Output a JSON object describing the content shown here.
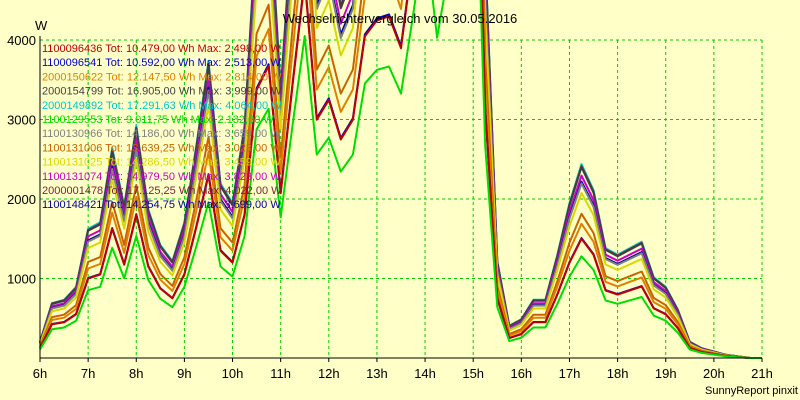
{
  "chart_data": {
    "type": "line",
    "title": "Wechselrichtervergleich vom 30.05.2016",
    "ylabel": "W",
    "xlabel": "",
    "footer": "SunnyReport pinxit",
    "ylim": [
      0,
      4000
    ],
    "xlim": [
      6,
      21
    ],
    "y_ticks": [
      {
        "v": 1000,
        "label": "1000"
      },
      {
        "v": 2000,
        "label": "2000"
      },
      {
        "v": 3000,
        "label": "3000"
      },
      {
        "v": 4000,
        "label": "4000"
      }
    ],
    "x_ticks": [
      {
        "v": 6,
        "label": "6h"
      },
      {
        "v": 7,
        "label": "7h"
      },
      {
        "v": 8,
        "label": "8h"
      },
      {
        "v": 9,
        "label": "9h"
      },
      {
        "v": 10,
        "label": "10h"
      },
      {
        "v": 11,
        "label": "11h"
      },
      {
        "v": 12,
        "label": "12h"
      },
      {
        "v": 13,
        "label": "13h"
      },
      {
        "v": 14,
        "label": "14h"
      },
      {
        "v": 15,
        "label": "15h"
      },
      {
        "v": 16,
        "label": "16h"
      },
      {
        "v": 17,
        "label": "17h"
      },
      {
        "v": 18,
        "label": "18h"
      },
      {
        "v": 19,
        "label": "19h"
      },
      {
        "v": 20,
        "label": "20h"
      },
      {
        "v": 21,
        "label": "21h"
      }
    ],
    "grid": true,
    "legend_position": "top-left",
    "x": [
      6.0,
      6.25,
      6.5,
      6.75,
      7.0,
      7.25,
      7.5,
      7.75,
      8.0,
      8.25,
      8.5,
      8.75,
      9.0,
      9.25,
      9.5,
      9.75,
      10.0,
      10.25,
      10.5,
      10.75,
      11.0,
      11.25,
      11.5,
      11.75,
      12.0,
      12.25,
      12.5,
      12.75,
      13.0,
      13.25,
      13.5,
      13.75,
      14.0,
      14.25,
      14.5,
      14.75,
      15.0,
      15.25,
      15.5,
      15.75,
      16.0,
      16.25,
      16.5,
      16.75,
      17.0,
      17.25,
      17.5,
      17.75,
      18.0,
      18.25,
      18.5,
      18.75,
      19.0,
      19.25,
      19.5,
      19.75,
      20.0,
      20.25,
      20.5,
      20.75,
      21.0
    ],
    "reference": [
      0.05,
      0.17,
      0.18,
      0.22,
      0.4,
      0.42,
      0.65,
      0.47,
      0.72,
      0.46,
      0.35,
      0.3,
      0.42,
      0.66,
      0.92,
      0.54,
      0.48,
      0.72,
      1.35,
      1.47,
      0.83,
      1.38,
      1.9,
      1.2,
      1.3,
      1.1,
      1.2,
      1.62,
      1.7,
      1.72,
      1.56,
      2.02,
      2.5,
      1.89,
      2.3,
      2.15,
      3.53,
      1.25,
      0.3,
      0.1,
      0.12,
      0.18,
      0.18,
      0.32,
      0.48,
      0.6,
      0.52,
      0.34,
      0.32,
      0.34,
      0.36,
      0.25,
      0.22,
      0.15,
      0.05,
      0.03,
      0.02,
      0.01,
      0.005,
      0.0,
      0.0
    ],
    "series": [
      {
        "name": "1100096436",
        "label": "1100096436 Tot: 10.479,00 Wh Max: 2.498,00 W",
        "color": "#c00000",
        "peak": 2498
      },
      {
        "name": "1100096541",
        "label": "1100096541 Tot: 10.592,00 Wh Max: 2.513,00 W",
        "color": "#0000cc",
        "peak": 2513
      },
      {
        "name": "2000150622",
        "label": "2000150622 Tot: 12.147,50 Wh Max: 2.814,00 W",
        "color": "#e08000",
        "peak": 2814
      },
      {
        "name": "2000154799",
        "label": "2000154799 Tot: 16.905,00 Wh Max: 3.999,00 W",
        "color": "#404040",
        "peak": 3999
      },
      {
        "name": "2000149892",
        "label": "2000149892 Tot: 17.291,63 Wh Max: 4.064,00 W",
        "color": "#00c8c8",
        "peak": 4064
      },
      {
        "name": "1100129553",
        "label": "1100129553 Tot: 9.011,75 Wh Max: 2.132,00 W",
        "color": "#00dd00",
        "peak": 2132
      },
      {
        "name": "1100130966",
        "label": "1100130966 Tot: 14.186,00 Wh Max: 3.659,00 W",
        "color": "#808080",
        "peak": 3659
      },
      {
        "name": "1100131006",
        "label": "1100131006 Tot: 13.639,25 Wh Max: 3.023,00 W",
        "color": "#c86400",
        "peak": 3023
      },
      {
        "name": "1100131025",
        "label": "1100131025 Tot: 14.286,50 Wh Max: 3.459,00 W",
        "color": "#d8d800",
        "peak": 3459
      },
      {
        "name": "1100131074",
        "label": "1100131074 Tot: 14.979,50 Wh Max: 3.823,00 W",
        "color": "#cc00cc",
        "peak": 3823
      },
      {
        "name": "2000001478",
        "label": "2000001478 Tot: 17.125,25 Wh Max: 4.022,00 W",
        "color": "#7a1e3c",
        "peak": 4022
      },
      {
        "name": "1100148421",
        "label": "1100148421 Tot: 14.254,75 Wh Max: 3.699,00 W",
        "color": "#0000a0",
        "peak": 3699
      }
    ]
  }
}
